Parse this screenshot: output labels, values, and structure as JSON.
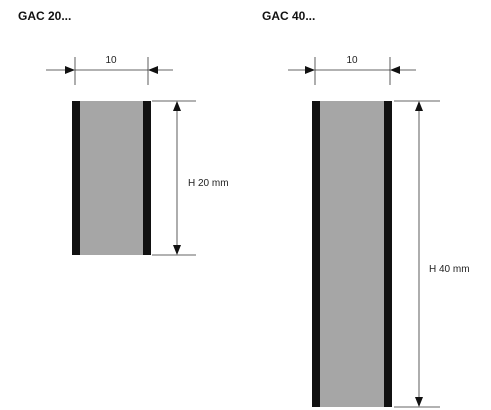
{
  "diagram": {
    "colors": {
      "element_fill": "#a6a6a6",
      "element_edge": "#111111",
      "line": "#333333",
      "background": "#ffffff"
    },
    "elements": [
      {
        "id": "gac20",
        "title": "GAC 20...",
        "width_label": "10",
        "height_label": "H 20 mm"
      },
      {
        "id": "gac40",
        "title": "GAC 40...",
        "width_label": "10",
        "height_label": "H 40 mm"
      }
    ]
  }
}
